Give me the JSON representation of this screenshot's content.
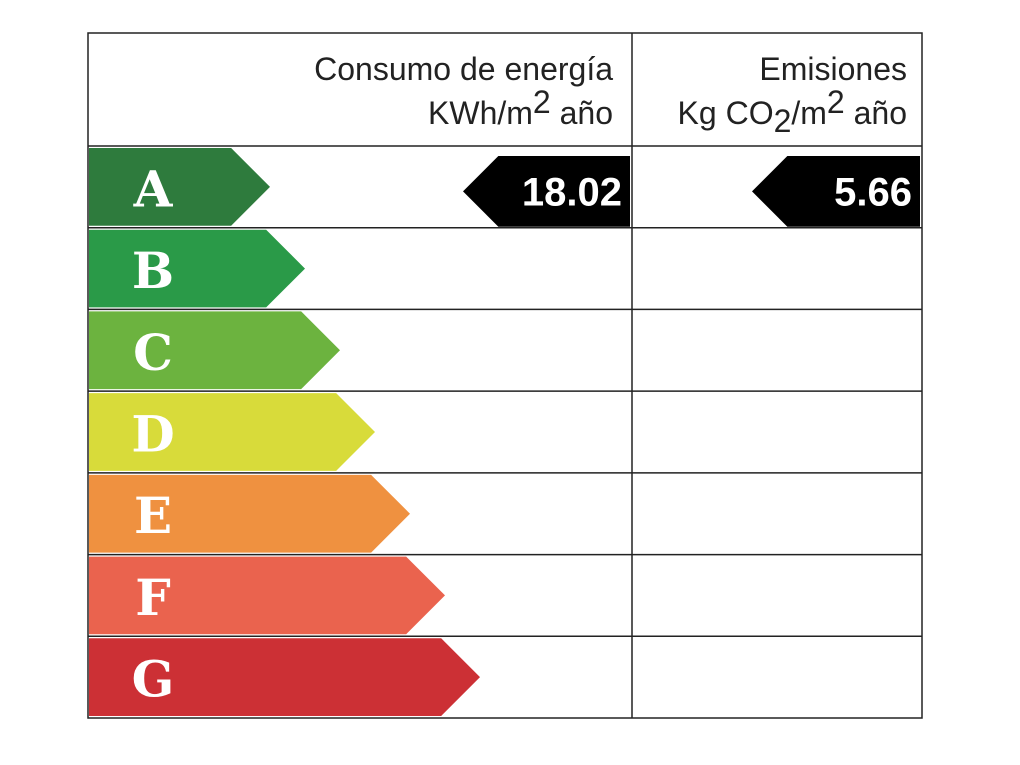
{
  "header": {
    "energy_title": "Consumo de energía",
    "energy_unit": [
      "KWh/m",
      "2",
      " año"
    ],
    "emissions_title": "Emisiones",
    "emissions_unit": [
      "Kg CO",
      "2",
      "/m",
      "2",
      " año"
    ]
  },
  "rows": [
    {
      "letter": "A",
      "color": "#2e7b3d",
      "energy": 18.02,
      "emissions": 5.66
    },
    {
      "letter": "B",
      "color": "#2a9a48"
    },
    {
      "letter": "C",
      "color": "#6cb33f"
    },
    {
      "letter": "D",
      "color": "#d8db3a"
    },
    {
      "letter": "E",
      "color": "#ef9140"
    },
    {
      "letter": "F",
      "color": "#ea634e"
    },
    {
      "letter": "G",
      "color": "#cc3035"
    }
  ]
}
